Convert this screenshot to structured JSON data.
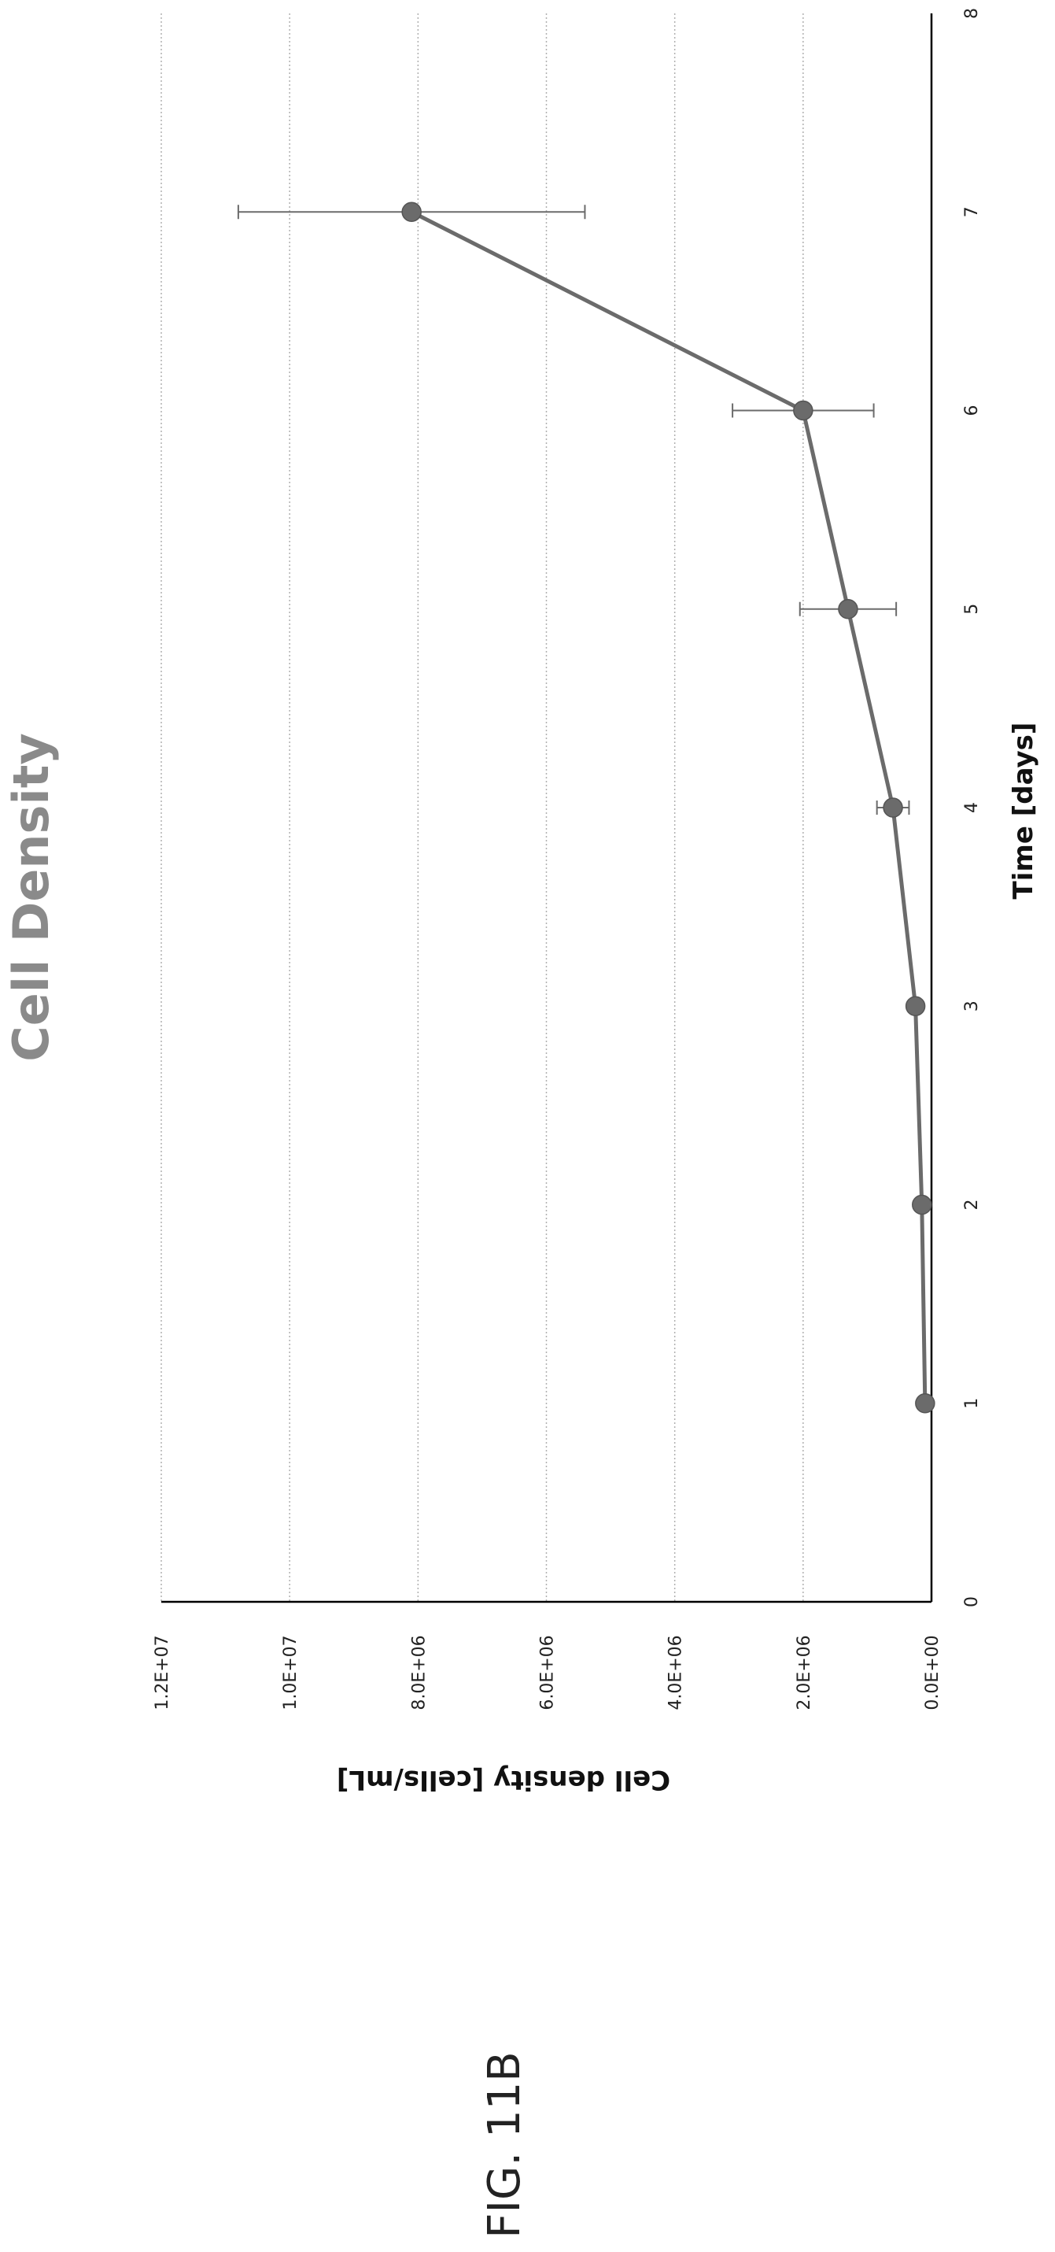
{
  "figure_label": "FIG. 11B",
  "chart_data": {
    "type": "line",
    "title": "Cell Density",
    "xlabel": "Time  [days]",
    "ylabel": "Cell density [cells/mL]",
    "xlim": [
      0,
      8
    ],
    "ylim": [
      0,
      12000000
    ],
    "x_ticks": [
      "0",
      "1",
      "2",
      "3",
      "4",
      "5",
      "6",
      "7",
      "8"
    ],
    "y_ticks": [
      "0.0E+00",
      "2.0E+06",
      "4.0E+06",
      "6.0E+06",
      "8.0E+06",
      "1.0E+07",
      "1.2E+07"
    ],
    "grid": true,
    "series": [
      {
        "x": [
          1,
          2,
          3,
          4,
          5,
          6,
          7
        ],
        "y": [
          100000,
          150000,
          250000,
          600000,
          1300000,
          2000000,
          8100000
        ],
        "error": [
          30000,
          40000,
          80000,
          250000,
          750000,
          1100000,
          2700000
        ]
      }
    ],
    "colors": {
      "line": "#6b6b6b",
      "marker": "#6b6b6b",
      "grid": "#b0b0b0",
      "axis": "#000000"
    }
  }
}
